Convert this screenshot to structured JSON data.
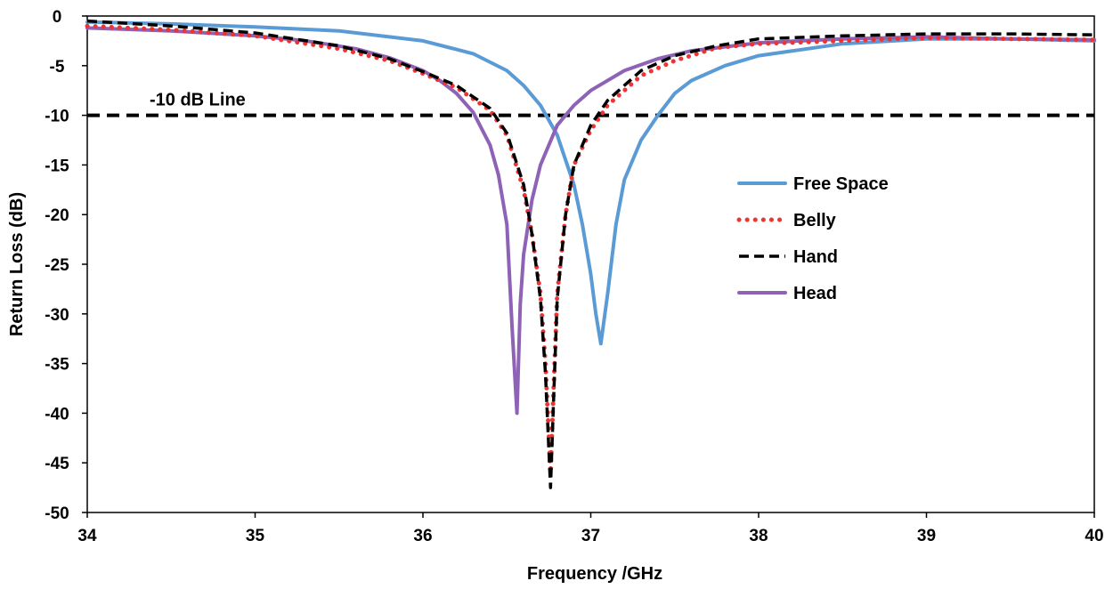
{
  "chart_data": {
    "type": "line",
    "title": "",
    "xlabel": "Frequency /GHz",
    "ylabel": "Return Loss (dB)",
    "xlim": [
      34,
      40
    ],
    "ylim": [
      -50,
      0
    ],
    "x_ticks": [
      34,
      35,
      36,
      37,
      38,
      39,
      40
    ],
    "y_ticks": [
      0,
      -5,
      -10,
      -15,
      -20,
      -25,
      -30,
      -35,
      -40,
      -45,
      -50
    ],
    "grid": false,
    "legend_position": "right-center",
    "annotation": {
      "text": "-10 dB Line",
      "value": -10
    },
    "colors": {
      "free_space": "#5b9bd5",
      "belly": "#ee3333",
      "hand": "#000000",
      "head": "#8e63b5",
      "reference_line": "#000000"
    },
    "series": [
      {
        "name": "Free Space",
        "style": "solid",
        "x": [
          34.0,
          34.5,
          35.0,
          35.5,
          36.0,
          36.3,
          36.5,
          36.6,
          36.7,
          36.8,
          36.9,
          36.95,
          37.0,
          37.03,
          37.06,
          37.1,
          37.15,
          37.2,
          37.3,
          37.4,
          37.5,
          37.6,
          37.8,
          38.0,
          38.5,
          39.0,
          39.5,
          40.0
        ],
        "values": [
          -0.6,
          -0.8,
          -1.1,
          -1.5,
          -2.5,
          -3.8,
          -5.5,
          -7.0,
          -9.0,
          -12.0,
          -17.0,
          -21.0,
          -26.0,
          -30.0,
          -33.0,
          -28.0,
          -21.0,
          -16.5,
          -12.5,
          -10.0,
          -7.8,
          -6.5,
          -5.0,
          -4.0,
          -2.8,
          -2.3,
          -2.3,
          -2.5
        ]
      },
      {
        "name": "Belly",
        "style": "dotted",
        "x": [
          34.0,
          34.5,
          35.0,
          35.5,
          35.8,
          36.0,
          36.2,
          36.4,
          36.5,
          36.6,
          36.65,
          36.7,
          36.73,
          36.76,
          36.78,
          36.8,
          36.85,
          36.9,
          37.0,
          37.1,
          37.2,
          37.3,
          37.5,
          37.75,
          38.0,
          38.5,
          39.0,
          39.5,
          40.0
        ],
        "values": [
          -1.0,
          -1.4,
          -2.0,
          -3.3,
          -4.5,
          -5.8,
          -7.2,
          -9.5,
          -12.0,
          -17.5,
          -22.0,
          -28.0,
          -35.0,
          -46.0,
          -37.0,
          -28.0,
          -20.0,
          -15.0,
          -11.5,
          -9.0,
          -7.5,
          -6.0,
          -4.5,
          -3.2,
          -2.8,
          -2.5,
          -2.2,
          -2.3,
          -2.4
        ]
      },
      {
        "name": "Hand",
        "style": "dashed",
        "x": [
          34.0,
          34.5,
          35.0,
          35.5,
          35.8,
          36.0,
          36.2,
          36.4,
          36.5,
          36.6,
          36.65,
          36.7,
          36.73,
          36.76,
          36.78,
          36.8,
          36.85,
          36.9,
          37.0,
          37.1,
          37.2,
          37.3,
          37.5,
          37.75,
          38.0,
          38.5,
          39.0,
          39.5,
          40.0
        ],
        "values": [
          -0.5,
          -1.0,
          -1.7,
          -3.0,
          -4.3,
          -5.6,
          -7.0,
          -9.3,
          -11.8,
          -17.0,
          -22.0,
          -28.5,
          -36.0,
          -47.5,
          -38.0,
          -28.5,
          -20.0,
          -15.0,
          -11.0,
          -8.5,
          -7.0,
          -5.5,
          -4.0,
          -3.0,
          -2.3,
          -2.0,
          -1.8,
          -1.8,
          -1.9
        ]
      },
      {
        "name": "Head",
        "style": "solid",
        "x": [
          34.0,
          34.5,
          35.0,
          35.3,
          35.6,
          35.8,
          36.0,
          36.1,
          36.2,
          36.3,
          36.4,
          36.45,
          36.5,
          36.53,
          36.56,
          36.58,
          36.6,
          36.65,
          36.7,
          36.8,
          36.9,
          37.0,
          37.2,
          37.4,
          37.6,
          38.0,
          38.5,
          39.0,
          39.5,
          40.0
        ],
        "values": [
          -1.2,
          -1.5,
          -2.0,
          -2.5,
          -3.3,
          -4.2,
          -5.5,
          -6.5,
          -7.8,
          -9.7,
          -13.0,
          -16.0,
          -21.0,
          -31.0,
          -40.0,
          -29.0,
          -24.0,
          -18.5,
          -15.0,
          -11.0,
          -9.0,
          -7.5,
          -5.5,
          -4.3,
          -3.5,
          -2.7,
          -2.3,
          -2.1,
          -2.3,
          -2.4
        ]
      }
    ]
  }
}
